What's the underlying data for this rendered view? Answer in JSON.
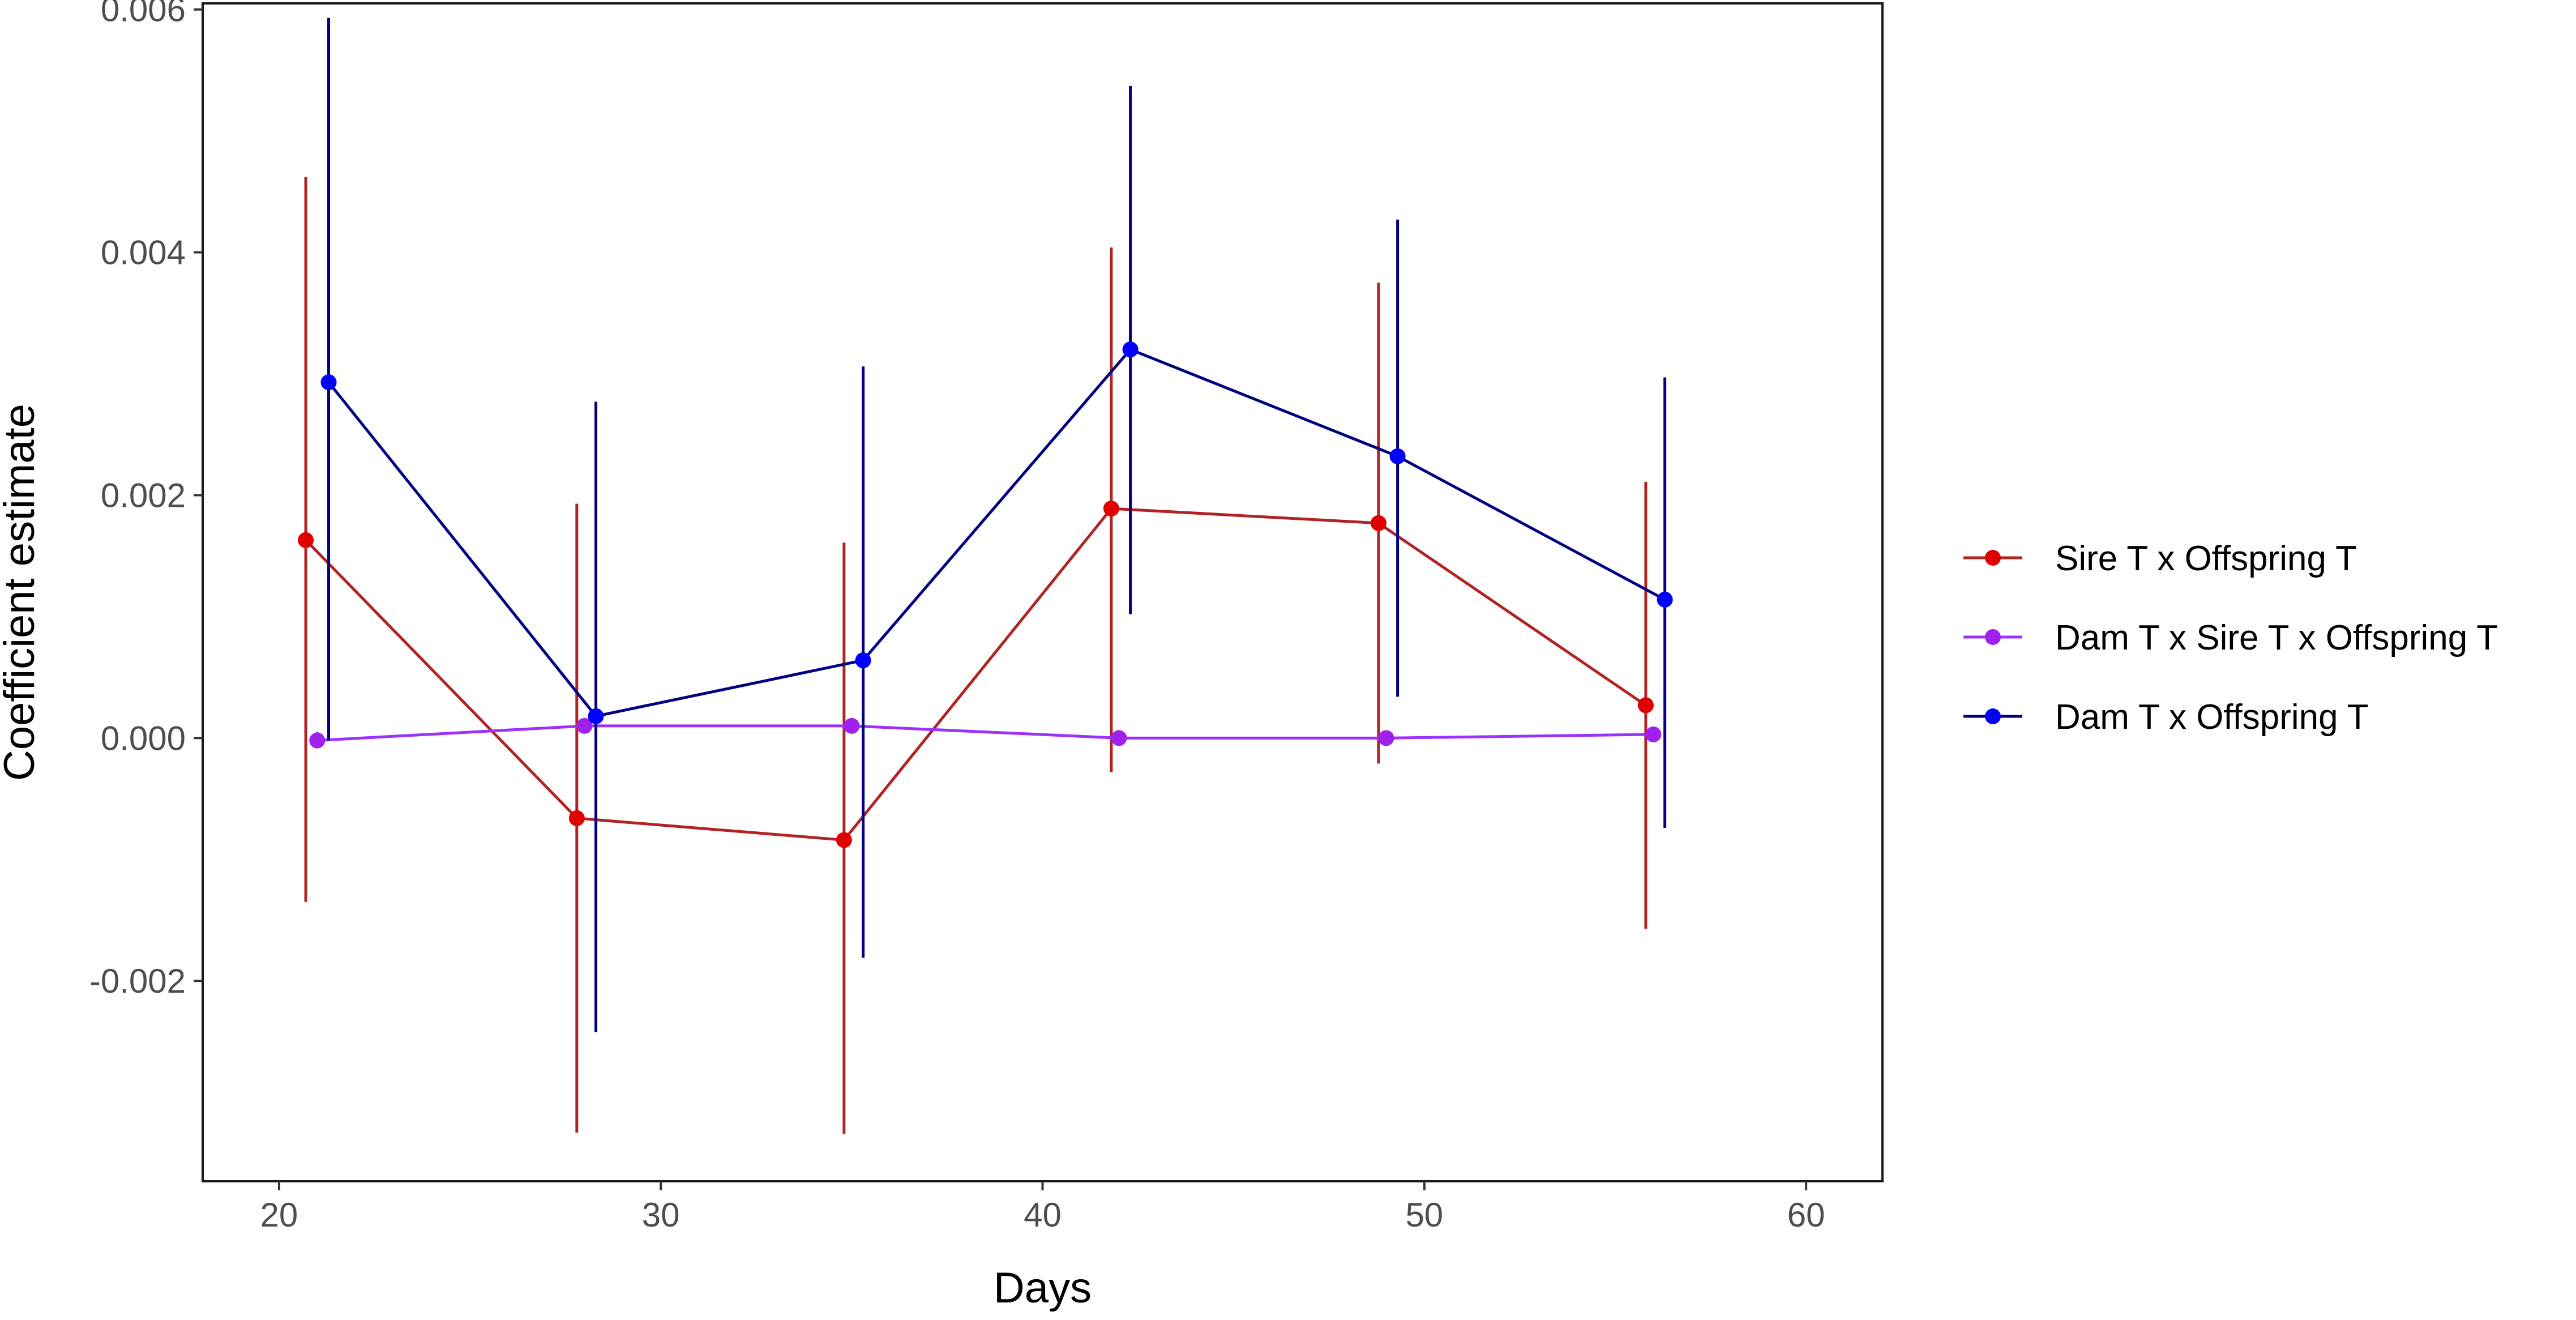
{
  "chart_data": {
    "type": "line",
    "title": "",
    "xlabel": "Days",
    "ylabel": "Coefficient estimate",
    "xlim": [
      18,
      62
    ],
    "ylim": [
      -0.00365,
      0.00605
    ],
    "x_ticks": [
      20,
      30,
      40,
      50,
      60
    ],
    "x_tick_labels": [
      "20",
      "30",
      "40",
      "50",
      "60"
    ],
    "y_ticks": [
      -0.002,
      0.0,
      0.002,
      0.004,
      0.006
    ],
    "y_tick_labels": [
      "-0.002",
      "0.000",
      "0.002",
      "0.004",
      "0.006"
    ],
    "grid": false,
    "legend_position": "right",
    "error_bars": true,
    "series": [
      {
        "name": "Sire T x Offspring T",
        "color": "#e00000",
        "line_color": "#b22222",
        "points": [
          {
            "x": 20.7,
            "y": 0.00163,
            "lower": -0.00135,
            "upper": 0.00462
          },
          {
            "x": 27.8,
            "y": -0.00066,
            "lower": -0.00325,
            "upper": 0.00193
          },
          {
            "x": 34.8,
            "y": -0.00084,
            "lower": -0.00326,
            "upper": 0.00161
          },
          {
            "x": 41.8,
            "y": 0.00189,
            "lower": -0.00028,
            "upper": 0.00404
          },
          {
            "x": 48.8,
            "y": 0.00177,
            "lower": -0.00021,
            "upper": 0.00375
          },
          {
            "x": 55.8,
            "y": 0.00027,
            "lower": -0.00157,
            "upper": 0.00211
          }
        ]
      },
      {
        "name": "Dam T x Sire T x Offspring T",
        "color": "#a020f0",
        "line_color": "#9b30ff",
        "points": [
          {
            "x": 21.0,
            "y": -2e-05,
            "lower": -7e-05,
            "upper": 5e-05
          },
          {
            "x": 28.0,
            "y": 0.0001,
            "lower": 5e-05,
            "upper": 0.00015
          },
          {
            "x": 35.0,
            "y": 0.0001,
            "lower": 5e-05,
            "upper": 0.00015
          },
          {
            "x": 42.0,
            "y": 0.0,
            "lower": -5e-05,
            "upper": 5e-05
          },
          {
            "x": 49.0,
            "y": 0.0,
            "lower": -5e-05,
            "upper": 5e-05
          },
          {
            "x": 56.0,
            "y": 3e-05,
            "lower": -2e-05,
            "upper": 8e-05
          }
        ]
      },
      {
        "name": "Dam T x Offspring T",
        "color": "#0000ff",
        "line_color": "#000080",
        "points": [
          {
            "x": 21.3,
            "y": 0.00293,
            "lower": -2e-05,
            "upper": 0.00593
          },
          {
            "x": 28.3,
            "y": 0.00018,
            "lower": -0.00242,
            "upper": 0.00277
          },
          {
            "x": 35.3,
            "y": 0.00064,
            "lower": -0.00181,
            "upper": 0.00306
          },
          {
            "x": 42.3,
            "y": 0.0032,
            "lower": 0.00102,
            "upper": 0.00537
          },
          {
            "x": 49.3,
            "y": 0.00232,
            "lower": 0.00034,
            "upper": 0.00427
          },
          {
            "x": 56.3,
            "y": 0.00114,
            "lower": -0.00074,
            "upper": 0.00297
          }
        ]
      }
    ]
  }
}
